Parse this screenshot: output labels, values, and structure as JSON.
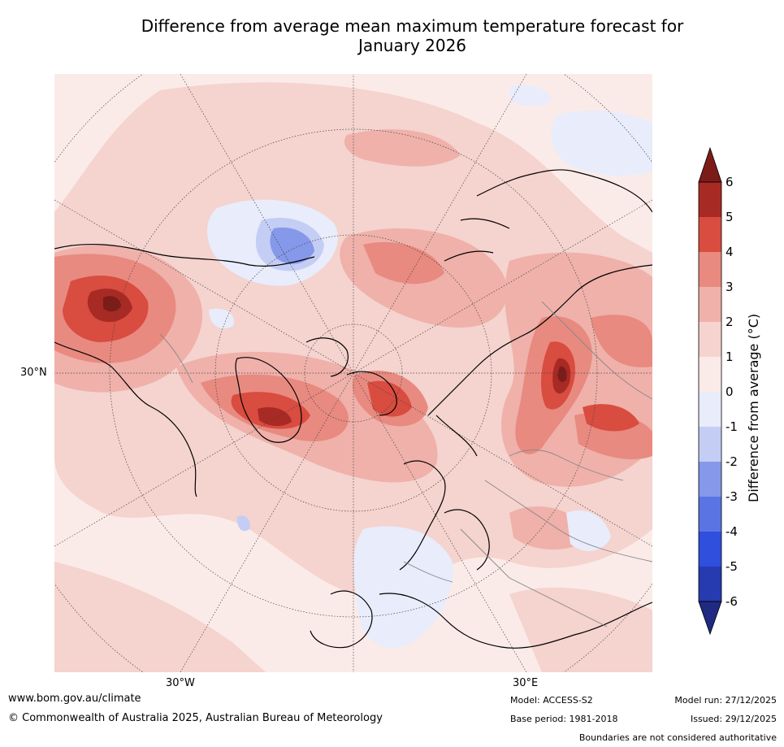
{
  "title_line1": "Difference from average mean maximum temperature forecast for",
  "title_line2": "January 2026",
  "map": {
    "projection": "north-polar-stereographic",
    "lat_label": "30°N",
    "lon_labels": [
      "30°W",
      "30°E"
    ]
  },
  "colorbar": {
    "label": "Difference from average ($^\\circ$C)",
    "label_display": "Difference from average (°C)",
    "ticks": [
      "6",
      "5",
      "4",
      "3",
      "2",
      "1",
      "0",
      "-1",
      "-2",
      "-3",
      "-4",
      "-5",
      "-6"
    ],
    "bins": [
      {
        "range": "above 6",
        "color": "#7b1c18"
      },
      {
        "range": "5 to 6",
        "color": "#a82a24"
      },
      {
        "range": "4 to 5",
        "color": "#d94c40"
      },
      {
        "range": "3 to 4",
        "color": "#e88a80"
      },
      {
        "range": "2 to 3",
        "color": "#efb1aa"
      },
      {
        "range": "1 to 2",
        "color": "#f5d3ce"
      },
      {
        "range": "0 to 1",
        "color": "#fbebe8"
      },
      {
        "range": "-1 to 0",
        "color": "#e8ecfb"
      },
      {
        "range": "-2 to -1",
        "color": "#c4cdf4"
      },
      {
        "range": "-3 to -2",
        "color": "#8598ea"
      },
      {
        "range": "-4 to -3",
        "color": "#5b74e3"
      },
      {
        "range": "-5 to -4",
        "color": "#2f4fdc"
      },
      {
        "range": "-6 to -5",
        "color": "#263bb0"
      },
      {
        "range": "below -6",
        "color": "#1f2a82"
      }
    ]
  },
  "footer": {
    "website": "www.bom.gov.au/climate",
    "copyright": "© Commonwealth of Australia 2025, Australian Bureau of Meteorology",
    "model": "Model: ACCESS-S2",
    "base_period": "Base period: 1981-2018",
    "model_run": "Model run: 27/12/2025",
    "issued": "Issued: 29/12/2025",
    "disclaimer": "Boundaries are not considered authoritative"
  }
}
